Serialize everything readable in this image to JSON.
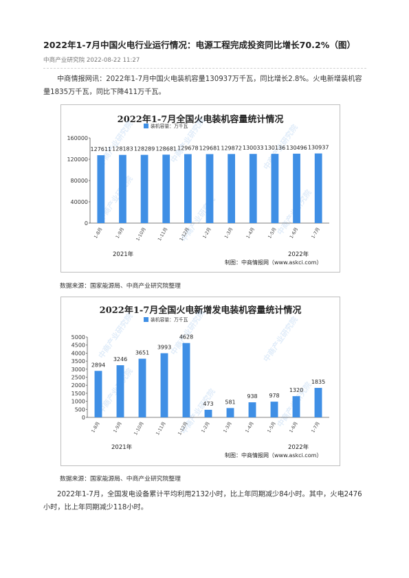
{
  "article": {
    "title": "2022年1-7月中国火电行业运行情况：电源工程完成投资同比增长70.2%（图）",
    "source_name": "中商产业研究院",
    "date": "2022-08-22 11:27",
    "intro": "中商情报网讯：2022年1-7月中国火电装机容量130937万千瓦，同比增长2.8%。火电新增装机容量1835万千瓦，同比下降411万千瓦。",
    "outro": "2022年1-7月，全国发电设备累计平均利用2132小时，比上年同期减少84小时。其中，火电2476小时，比上年同期减少118小时。"
  },
  "figures": [
    {
      "caption_source": "数据来源：国家能源局、中商产业研究院整理"
    },
    {
      "caption_source": "数据来源：国家能源局、中商产业研究院整理"
    }
  ],
  "watermark": {
    "text": "中商产业研究院"
  },
  "colors": {
    "bar": "#3f8fe5",
    "title_text": "#222222",
    "watermark": "#2f7fd8"
  },
  "chart_data": [
    {
      "type": "bar",
      "title": "2022年1-7月全国火电装机容量统计情况",
      "legend": {
        "label": "装机容量：万千瓦",
        "placement": "top-left"
      },
      "categories": [
        "1-8月",
        "1-9月",
        "1-10月",
        "1-11月",
        "1-12月",
        "1-2月",
        "1-3月",
        "1-4月",
        "1-5月",
        "1-6月",
        "1-7月"
      ],
      "series": [
        {
          "name": "装机容量：万千瓦",
          "values": [
            127611,
            128183,
            128289,
            128681,
            129678,
            129681,
            129872,
            130033,
            130136,
            130496,
            130937
          ]
        }
      ],
      "yticks": [
        0,
        40000,
        80000,
        120000,
        160000
      ],
      "ylim": [
        0,
        160000
      ],
      "year_labels": [
        "2021年",
        "2022年"
      ],
      "credit": "制图：中商情报网（www.askci.com）",
      "grid": false
    },
    {
      "type": "bar",
      "title": "2022年1-7月全国火电新增发电装机容量统计情况",
      "legend": {
        "label": "装机容量：万千瓦",
        "placement": "top-left"
      },
      "categories": [
        "1-8月",
        "1-9月",
        "1-10月",
        "1-11月",
        "1-12月",
        "1-2月",
        "1-3月",
        "1-4月",
        "1-5月",
        "1-6月",
        "1-7月"
      ],
      "series": [
        {
          "name": "装机容量：万千瓦",
          "values": [
            2894,
            3246,
            3651,
            3993,
            4628,
            473,
            581,
            938,
            978,
            1320,
            1835
          ]
        }
      ],
      "yticks": [
        0,
        500,
        1000,
        1500,
        2000,
        2500,
        3000,
        3500,
        4000,
        4500,
        5000
      ],
      "ylim": [
        0,
        5000
      ],
      "year_labels": [
        "2021年",
        "2022年"
      ],
      "credit": "制图：中商情报网（www.askci.com）",
      "grid": false
    }
  ]
}
